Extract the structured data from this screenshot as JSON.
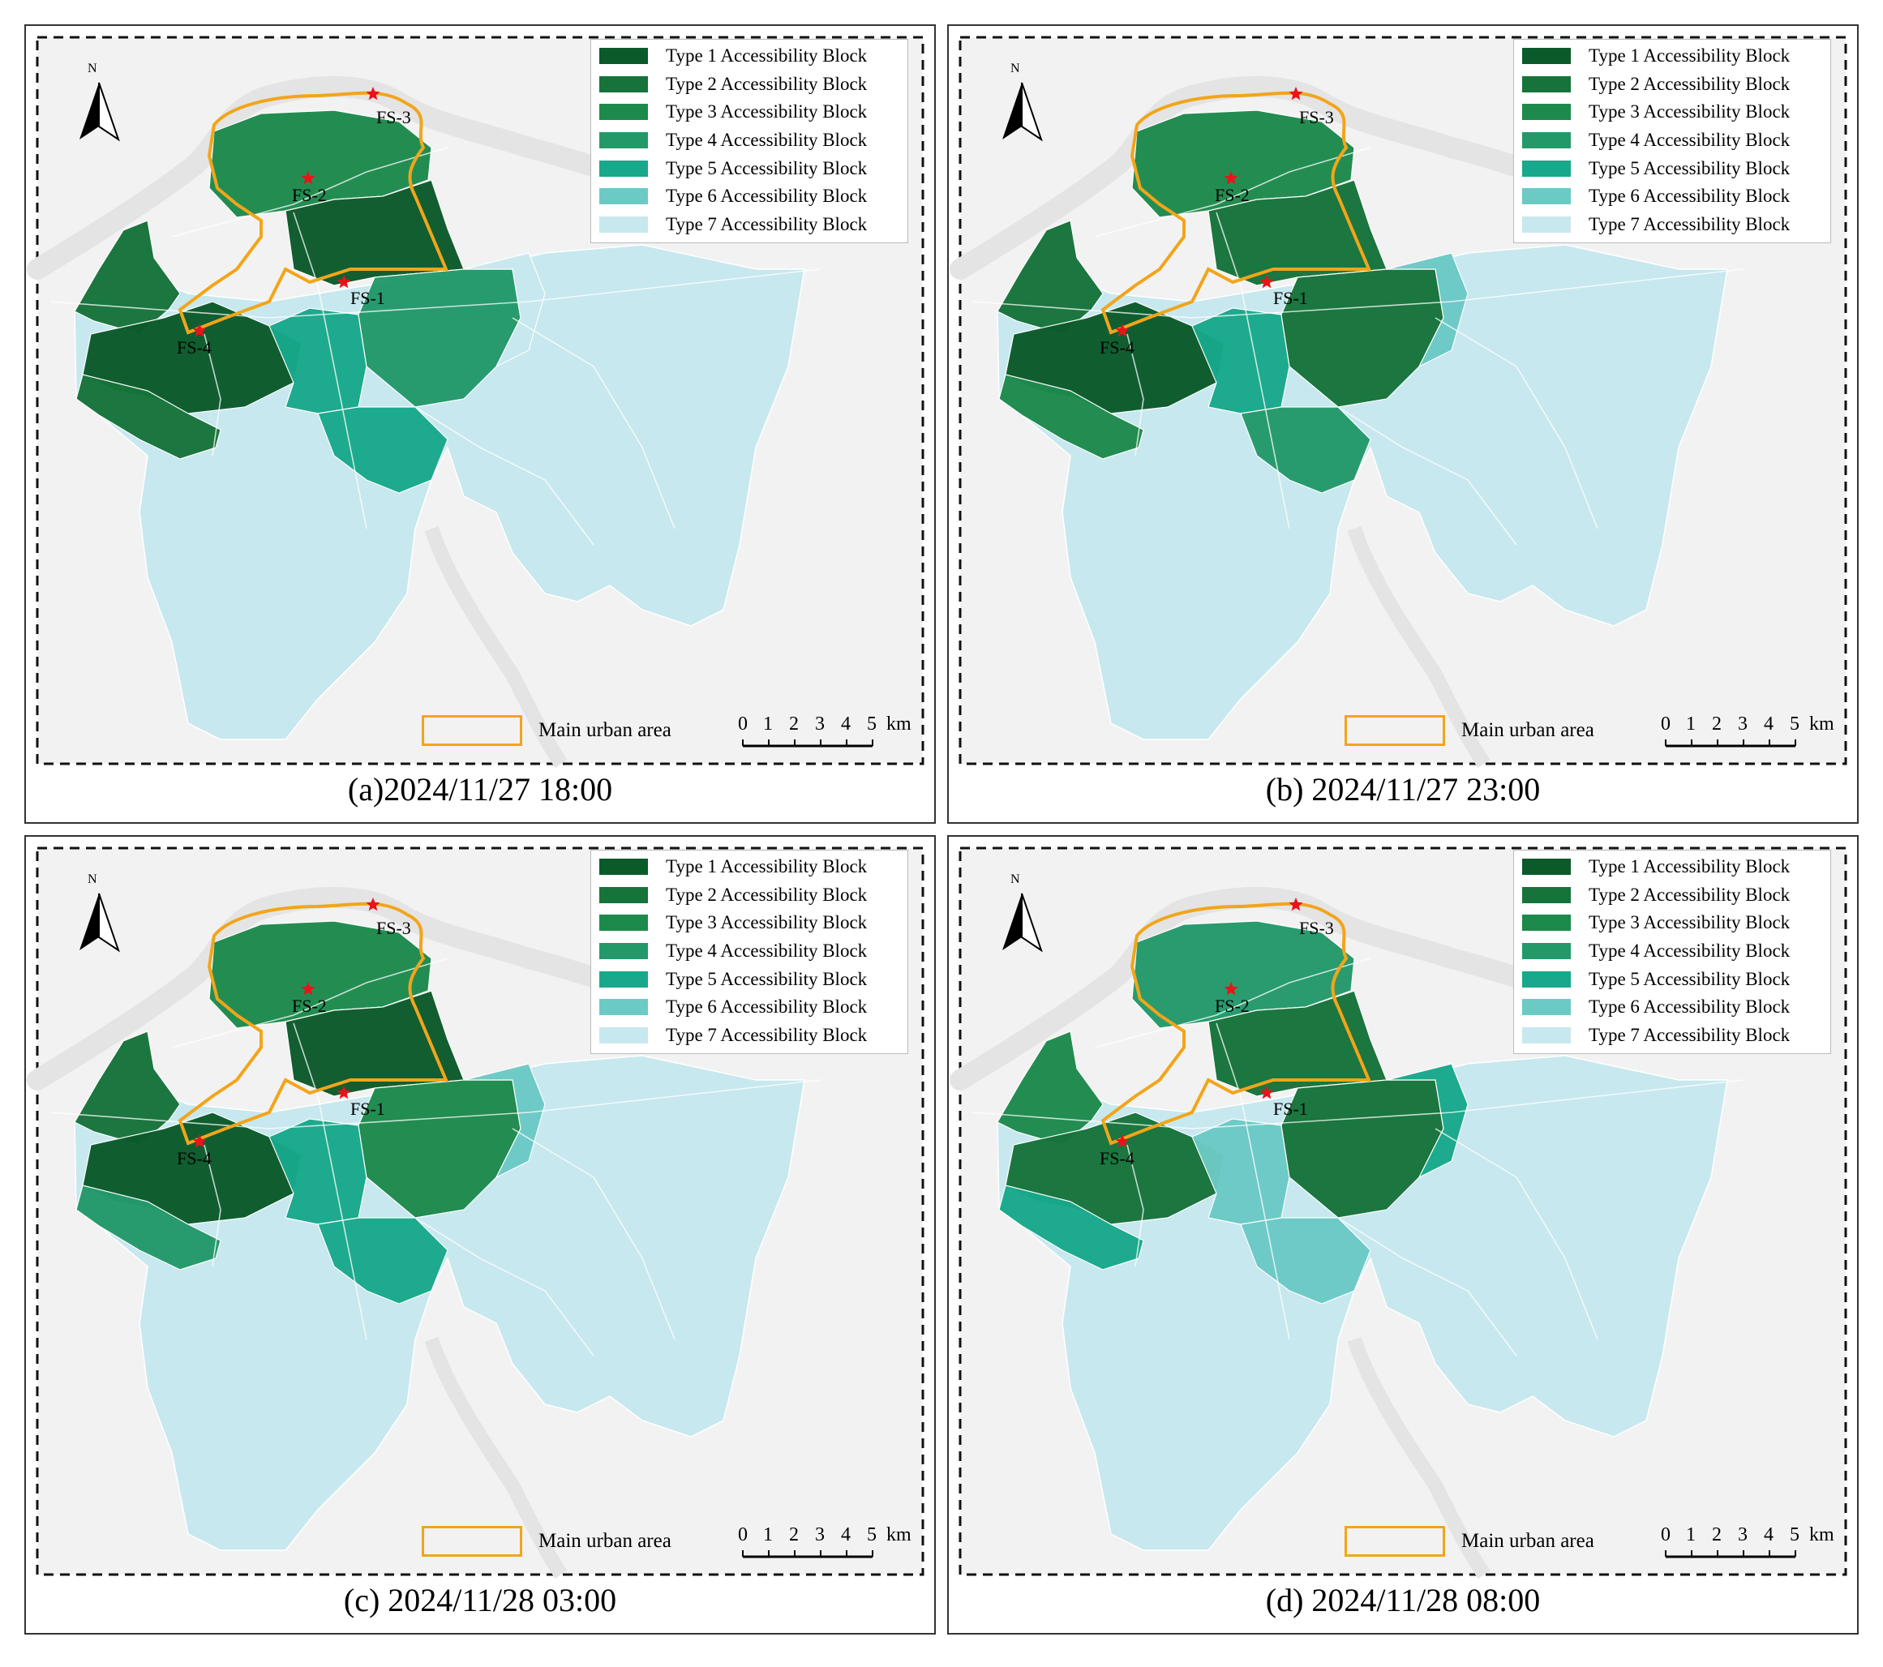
{
  "colors": {
    "type1": "#0b5a2a",
    "type2": "#16733a",
    "type3": "#1d8a4c",
    "type4": "#23996a",
    "type5": "#18a88b",
    "type6": "#6ccac5",
    "type7": "#c7e8ee",
    "urban_outline": "#f2a51a",
    "station_marker": "#e8141a",
    "background_land": "#f2f2f2",
    "river": "#e4e4e4"
  },
  "legend": {
    "items": [
      {
        "label": "Type 1 Accessibility Block",
        "color": "#0b5a2a"
      },
      {
        "label": "Type 2 Accessibility Block",
        "color": "#16733a"
      },
      {
        "label": "Type 3 Accessibility Block",
        "color": "#1d8a4c"
      },
      {
        "label": "Type 4 Accessibility Block",
        "color": "#23996a"
      },
      {
        "label": "Type 5 Accessibility Block",
        "color": "#18a88b"
      },
      {
        "label": "Type 6 Accessibility Block",
        "color": "#6ccac5"
      },
      {
        "label": "Type 7 Accessibility Block",
        "color": "#c7e8ee"
      }
    ],
    "urban_area_label": "Main urban area"
  },
  "scale_bar": {
    "ticks": [
      "0",
      "1",
      "2",
      "3",
      "4",
      "5"
    ],
    "unit": "km"
  },
  "north_arrow": {
    "label": "N",
    "icon": "north-arrow-icon"
  },
  "stations": [
    "FS-1",
    "FS-2",
    "FS-3",
    "FS-4"
  ],
  "panels": [
    {
      "caption": "(a)2024/11/27 18:00",
      "level": "moderate"
    },
    {
      "caption": "(b) 2024/11/27 23:00",
      "level": "wide"
    },
    {
      "caption": "(c) 2024/11/28 03:00",
      "level": "widest"
    },
    {
      "caption": "(d) 2024/11/28 08:00",
      "level": "narrow"
    }
  ]
}
